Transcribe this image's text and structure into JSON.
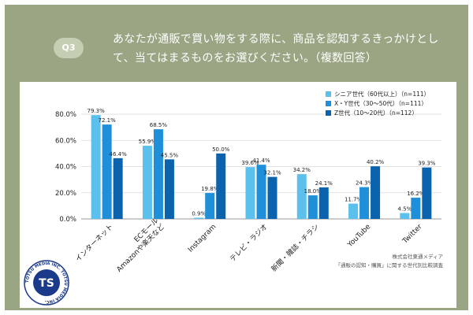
{
  "question": {
    "badge": "Q3",
    "text": "あなたが通販で買い物をする際に、商品を認知するきっかけとして、当てはまるものをお選びください。（複数回答）"
  },
  "colors": {
    "frame": "#9aa583",
    "series": [
      "#5bc0eb",
      "#1e8fd8",
      "#0a63ac"
    ]
  },
  "credit": {
    "line1": "株式会社東通メディア",
    "line2": "「通販の認知・購買」に関する世代別比較調査"
  },
  "logo": {
    "mark": "TS",
    "ring_text": "TOTSU MEDIA INC. TOTSU MEDIA INC."
  },
  "chart_data": {
    "type": "bar",
    "categories": [
      "インターネット",
      "ECモール\nAmazonや楽天など",
      "Instagram",
      "テレビ・ラジオ",
      "新聞・雑誌・チラシ",
      "YouTube",
      "Twitter"
    ],
    "series": [
      {
        "name": "シニア世代（60代以上）（n=111）",
        "values": [
          79.3,
          55.9,
          0.9,
          39.6,
          34.2,
          11.7,
          4.5
        ]
      },
      {
        "name": "X・Y世代（30〜50代）（n=111）",
        "values": [
          72.1,
          68.5,
          19.8,
          41.4,
          18.0,
          24.3,
          16.2
        ]
      },
      {
        "name": "Z世代（10〜20代）（n=112）",
        "values": [
          46.4,
          45.5,
          50.0,
          32.1,
          24.1,
          40.2,
          39.3
        ]
      }
    ],
    "y_ticks": [
      "0.0%",
      "20.0%",
      "40.0%",
      "60.0%",
      "80.0%"
    ],
    "ylim": [
      0,
      80
    ],
    "grid": true,
    "legend": "top-right",
    "value_suffix": "%"
  }
}
